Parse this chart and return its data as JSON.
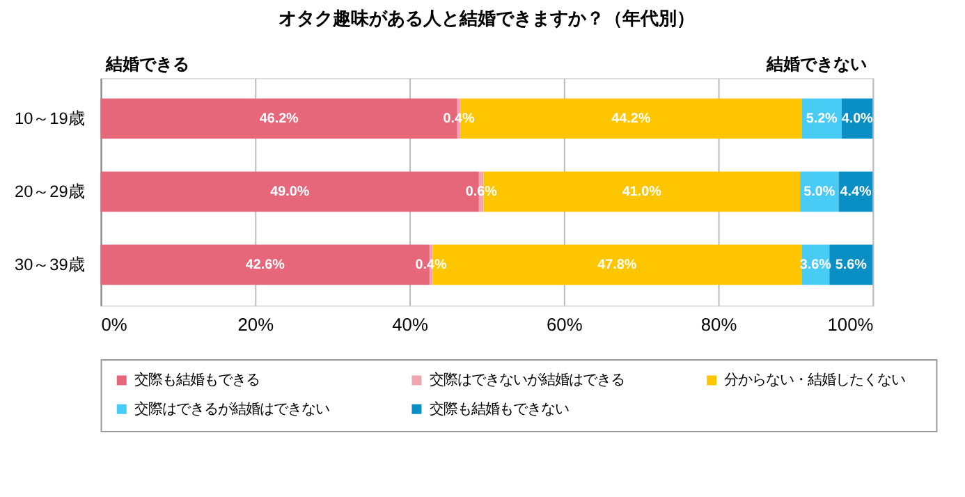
{
  "chart_data": {
    "type": "bar",
    "orientation": "horizontal",
    "stacked": true,
    "title": "オタク趣味がある人と結婚できますか？（年代別）",
    "categories": [
      "10～19歳",
      "20～29歳",
      "30～39歳"
    ],
    "series": [
      {
        "name": "交際も結婚もできる",
        "color": "#e6677a",
        "values": [
          46.2,
          49.0,
          42.6
        ],
        "value_labels": [
          "46.2%",
          "49.0%",
          "42.6%"
        ]
      },
      {
        "name": "交際はできないが結婚はできる",
        "color": "#f0a6b0",
        "values": [
          0.4,
          0.6,
          0.4
        ],
        "value_labels": [
          "0.4%",
          "0.6%",
          "0.4%"
        ]
      },
      {
        "name": "分からない・結婚したくない",
        "color": "#ffc600",
        "values": [
          44.2,
          41.0,
          47.8
        ],
        "value_labels": [
          "44.2%",
          "41.0%",
          "47.8%"
        ]
      },
      {
        "name": "交際はできるが結婚はできない",
        "color": "#48ccf5",
        "values": [
          5.2,
          5.0,
          3.6
        ],
        "value_labels": [
          "5.2%",
          "5.0%",
          "3.6%"
        ]
      },
      {
        "name": "交際も結婚もできない",
        "color": "#0a8fc4",
        "values": [
          4.0,
          4.4,
          5.6
        ],
        "value_labels": [
          "4.0%",
          "4.4%",
          "5.6%"
        ]
      }
    ],
    "xlim": [
      0,
      100
    ],
    "xticks": [
      {
        "value": 0,
        "label": "0%"
      },
      {
        "value": 20,
        "label": "20%"
      },
      {
        "value": 40,
        "label": "40%"
      },
      {
        "value": 60,
        "label": "60%"
      },
      {
        "value": 80,
        "label": "80%"
      },
      {
        "value": 100,
        "label": "100%"
      }
    ],
    "grid": "x",
    "legend": "bottom",
    "annotations": [
      "結婚できる",
      "結婚できない"
    ]
  }
}
